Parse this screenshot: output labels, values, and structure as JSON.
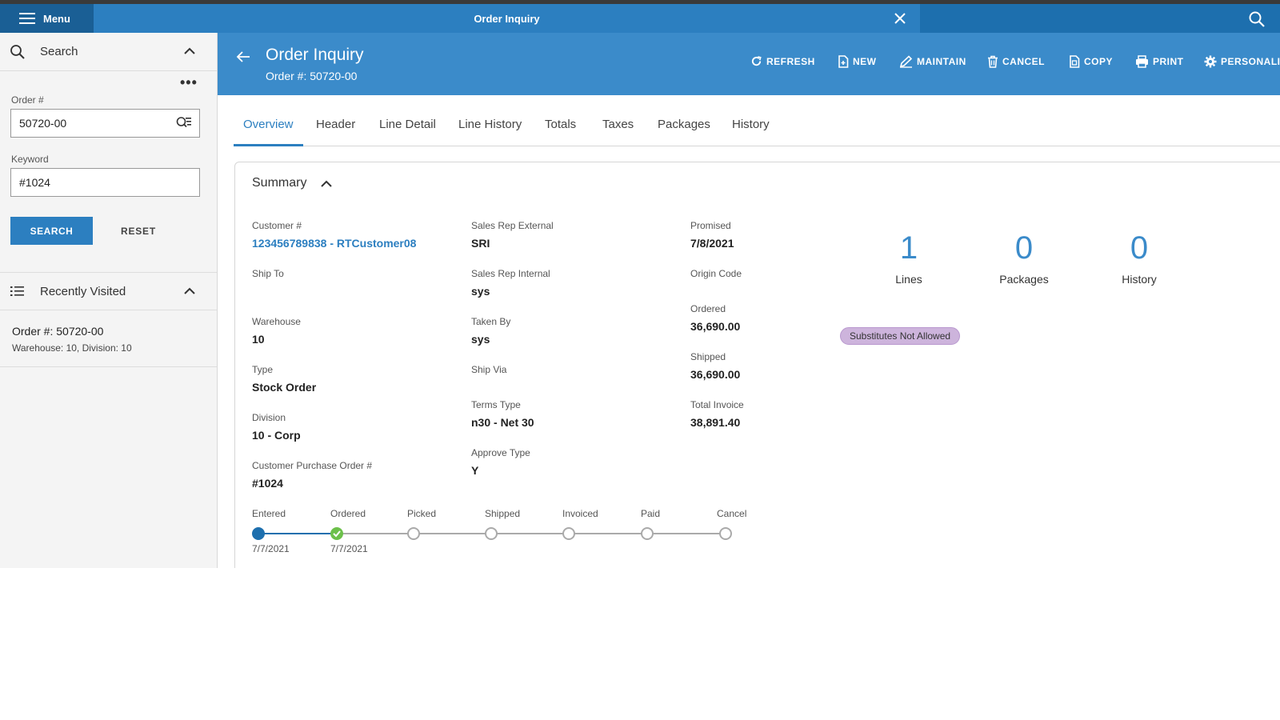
{
  "topbar": {
    "menu_label": "Menu",
    "tab_title": "Order Inquiry"
  },
  "sidebar": {
    "search_section": "Search",
    "order_label": "Order #",
    "order_value": "50720-00",
    "keyword_label": "Keyword",
    "keyword_value": "#1024",
    "search_button": "SEARCH",
    "reset_button": "RESET",
    "recent_section": "Recently Visited",
    "recent_items": [
      {
        "title": "Order #: 50720-00",
        "subtitle": "Warehouse: 10, Division: 10"
      }
    ]
  },
  "header": {
    "title": "Order Inquiry",
    "subtitle": "Order #: 50720-00",
    "actions": [
      "REFRESH",
      "NEW",
      "MAINTAIN",
      "CANCEL",
      "COPY",
      "PRINT",
      "PERSONALIZE"
    ]
  },
  "tabs": [
    "Overview",
    "Header",
    "Line Detail",
    "Line History",
    "Totals",
    "Taxes",
    "Packages",
    "History"
  ],
  "active_tab": "Overview",
  "summary": {
    "title": "Summary",
    "col1": [
      {
        "label": "Customer #",
        "value": "123456789838 - RTCustomer08",
        "link": true
      },
      {
        "label": "Ship To",
        "value": ""
      },
      {
        "label": "Warehouse",
        "value": "10"
      },
      {
        "label": "Type",
        "value": "Stock Order"
      },
      {
        "label": "Division",
        "value": "10 - Corp"
      },
      {
        "label": "Customer Purchase Order #",
        "value": "#1024"
      }
    ],
    "col2": [
      {
        "label": "Sales Rep External",
        "value": "SRI"
      },
      {
        "label": "Sales Rep Internal",
        "value": "sys"
      },
      {
        "label": "Taken By",
        "value": "sys"
      },
      {
        "label": "Ship Via",
        "value": ""
      },
      {
        "label": "Terms Type",
        "value": "n30 - Net 30"
      },
      {
        "label": "Approve Type",
        "value": "Y"
      }
    ],
    "col3": [
      {
        "label": "Promised",
        "value": "7/8/2021"
      },
      {
        "label": "Origin Code",
        "value": ""
      },
      {
        "label": "Ordered",
        "value": "36,690.00"
      },
      {
        "label": "Shipped",
        "value": "36,690.00"
      },
      {
        "label": "Total Invoice",
        "value": "38,891.40"
      }
    ],
    "metrics": [
      {
        "value": "1",
        "label": "Lines"
      },
      {
        "value": "0",
        "label": "Packages"
      },
      {
        "value": "0",
        "label": "History"
      }
    ],
    "badge": "Substitutes Not Allowed",
    "steps": [
      {
        "label": "Entered",
        "date": "7/7/2021",
        "state": "current"
      },
      {
        "label": "Ordered",
        "date": "7/7/2021",
        "state": "complete"
      },
      {
        "label": "Picked",
        "date": "",
        "state": "pending"
      },
      {
        "label": "Shipped",
        "date": "",
        "state": "pending"
      },
      {
        "label": "Invoiced",
        "date": "",
        "state": "pending"
      },
      {
        "label": "Paid",
        "date": "",
        "state": "pending"
      },
      {
        "label": "Cancel",
        "date": "",
        "state": "pending"
      }
    ]
  },
  "colors": {
    "topbar": "#1d6fae",
    "header": "#3b8bca",
    "accent": "#2c7fc0",
    "badge": "#cdb4dc",
    "step_complete": "#6cc04a"
  }
}
